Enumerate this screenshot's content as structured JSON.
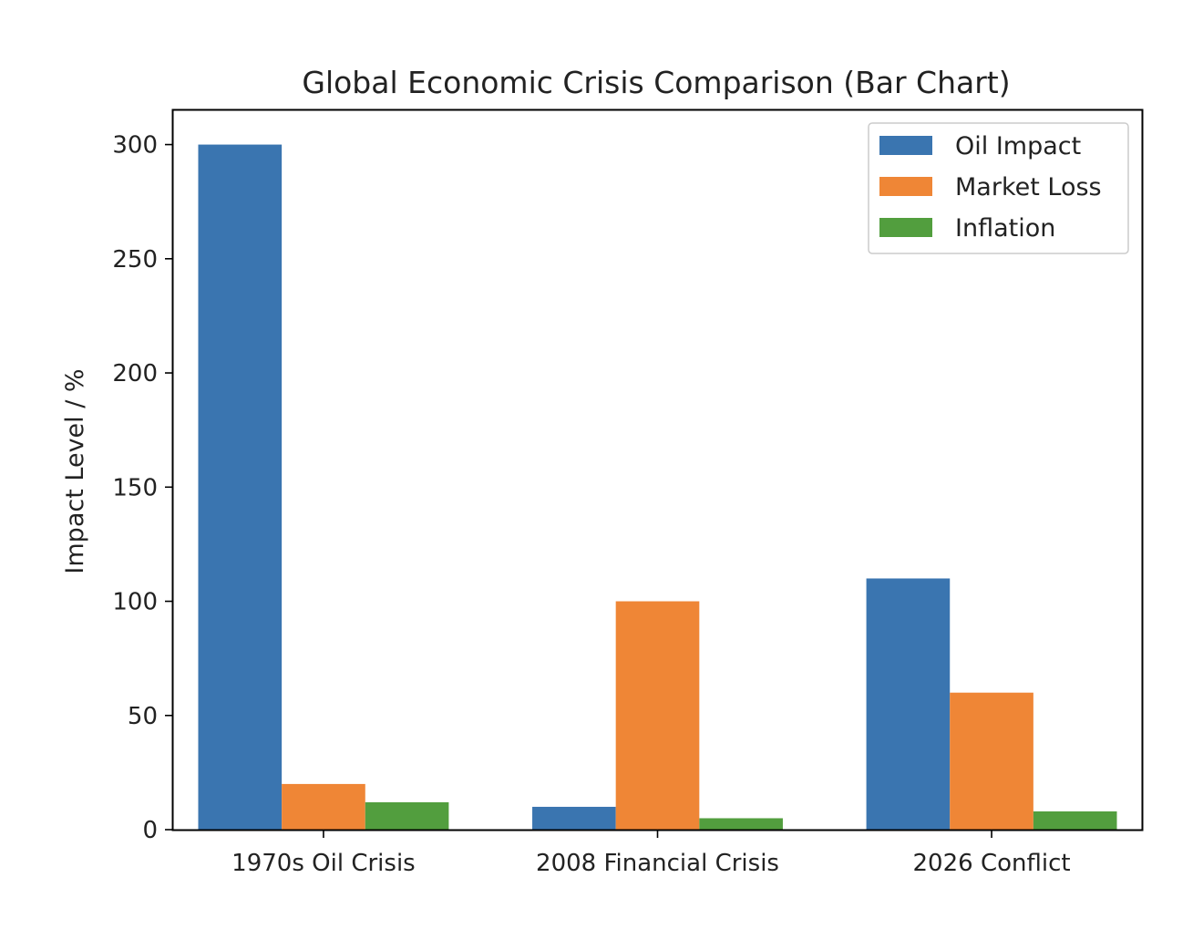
{
  "chart_data": {
    "type": "bar",
    "title": "Global Economic Crisis Comparison (Bar Chart)",
    "xlabel": "",
    "ylabel": "Impact Level / %",
    "categories": [
      "1970s Oil Crisis",
      "2008 Financial Crisis",
      "2026 Conflict"
    ],
    "series": [
      {
        "name": "Oil Impact",
        "values": [
          300,
          10,
          110
        ],
        "color": "#3a75b0"
      },
      {
        "name": "Market Loss",
        "values": [
          20,
          100,
          60
        ],
        "color": "#ef8636"
      },
      {
        "name": "Inflation",
        "values": [
          12,
          5,
          8
        ],
        "color": "#529e3e"
      }
    ],
    "ylim": [
      0,
      315
    ],
    "yticks": [
      0,
      50,
      100,
      150,
      200,
      250,
      300
    ],
    "grid": false,
    "legend_position": "top-right"
  }
}
